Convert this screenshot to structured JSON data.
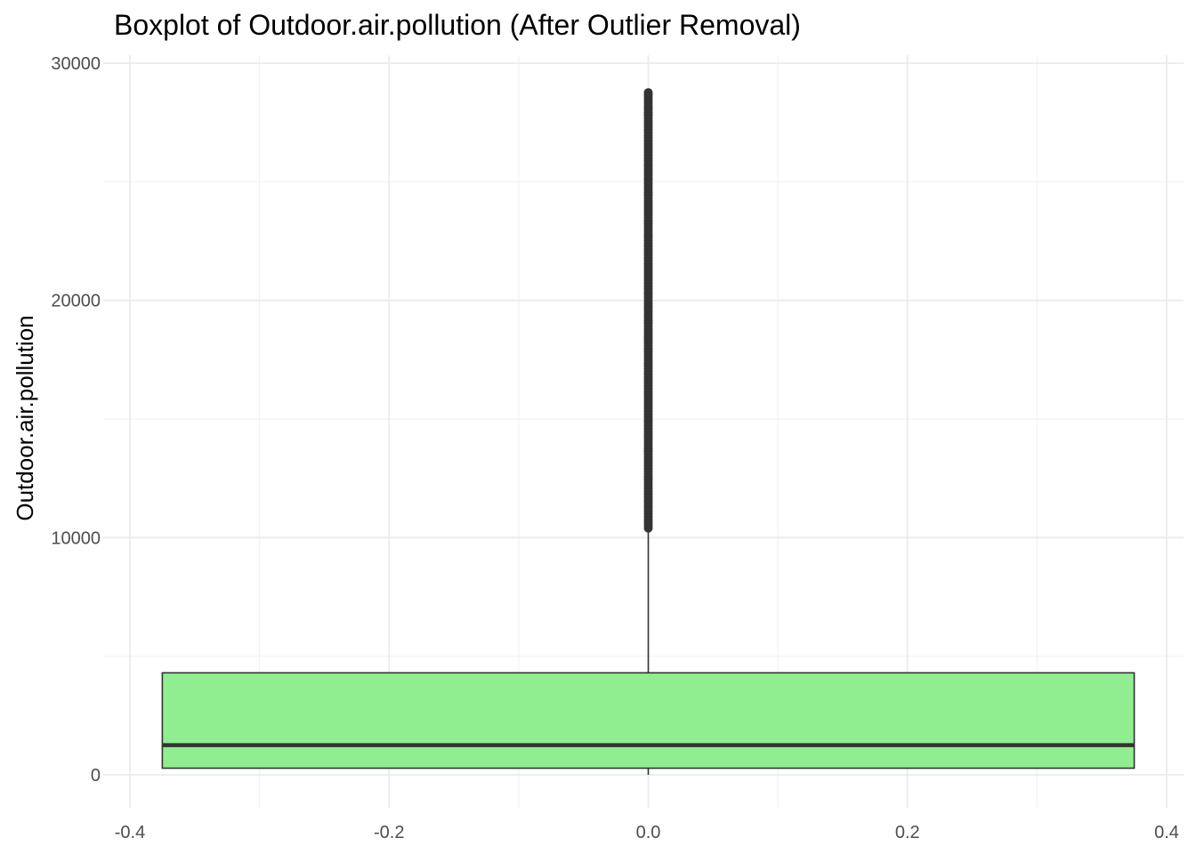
{
  "chart_data": {
    "type": "boxplot",
    "title": "Boxplot of Outdoor.air.pollution (After Outlier Removal)",
    "xlabel": "",
    "ylabel": "Outdoor.air.pollution",
    "xlim": [
      -0.4,
      0.4
    ],
    "ylim": [
      0,
      30000
    ],
    "x_ticks": [
      "-0.4",
      "-0.2",
      "0.0",
      "0.2",
      "0.4"
    ],
    "x_tick_values": [
      -0.4,
      -0.2,
      0.0,
      0.2,
      0.4
    ],
    "y_ticks": [
      "0",
      "10000",
      "20000",
      "30000"
    ],
    "y_tick_values": [
      0,
      10000,
      20000,
      30000
    ],
    "grid": true,
    "box": {
      "x_center": 0.0,
      "x_min": -0.375,
      "x_max": 0.375,
      "whisker_low": 0,
      "q1": 280,
      "median": 1250,
      "q3": 4300,
      "whisker_high": 10400,
      "outliers_from": 10400,
      "outliers_to": 28800,
      "fill_color": "#90ee90",
      "line_color": "#333333"
    }
  }
}
